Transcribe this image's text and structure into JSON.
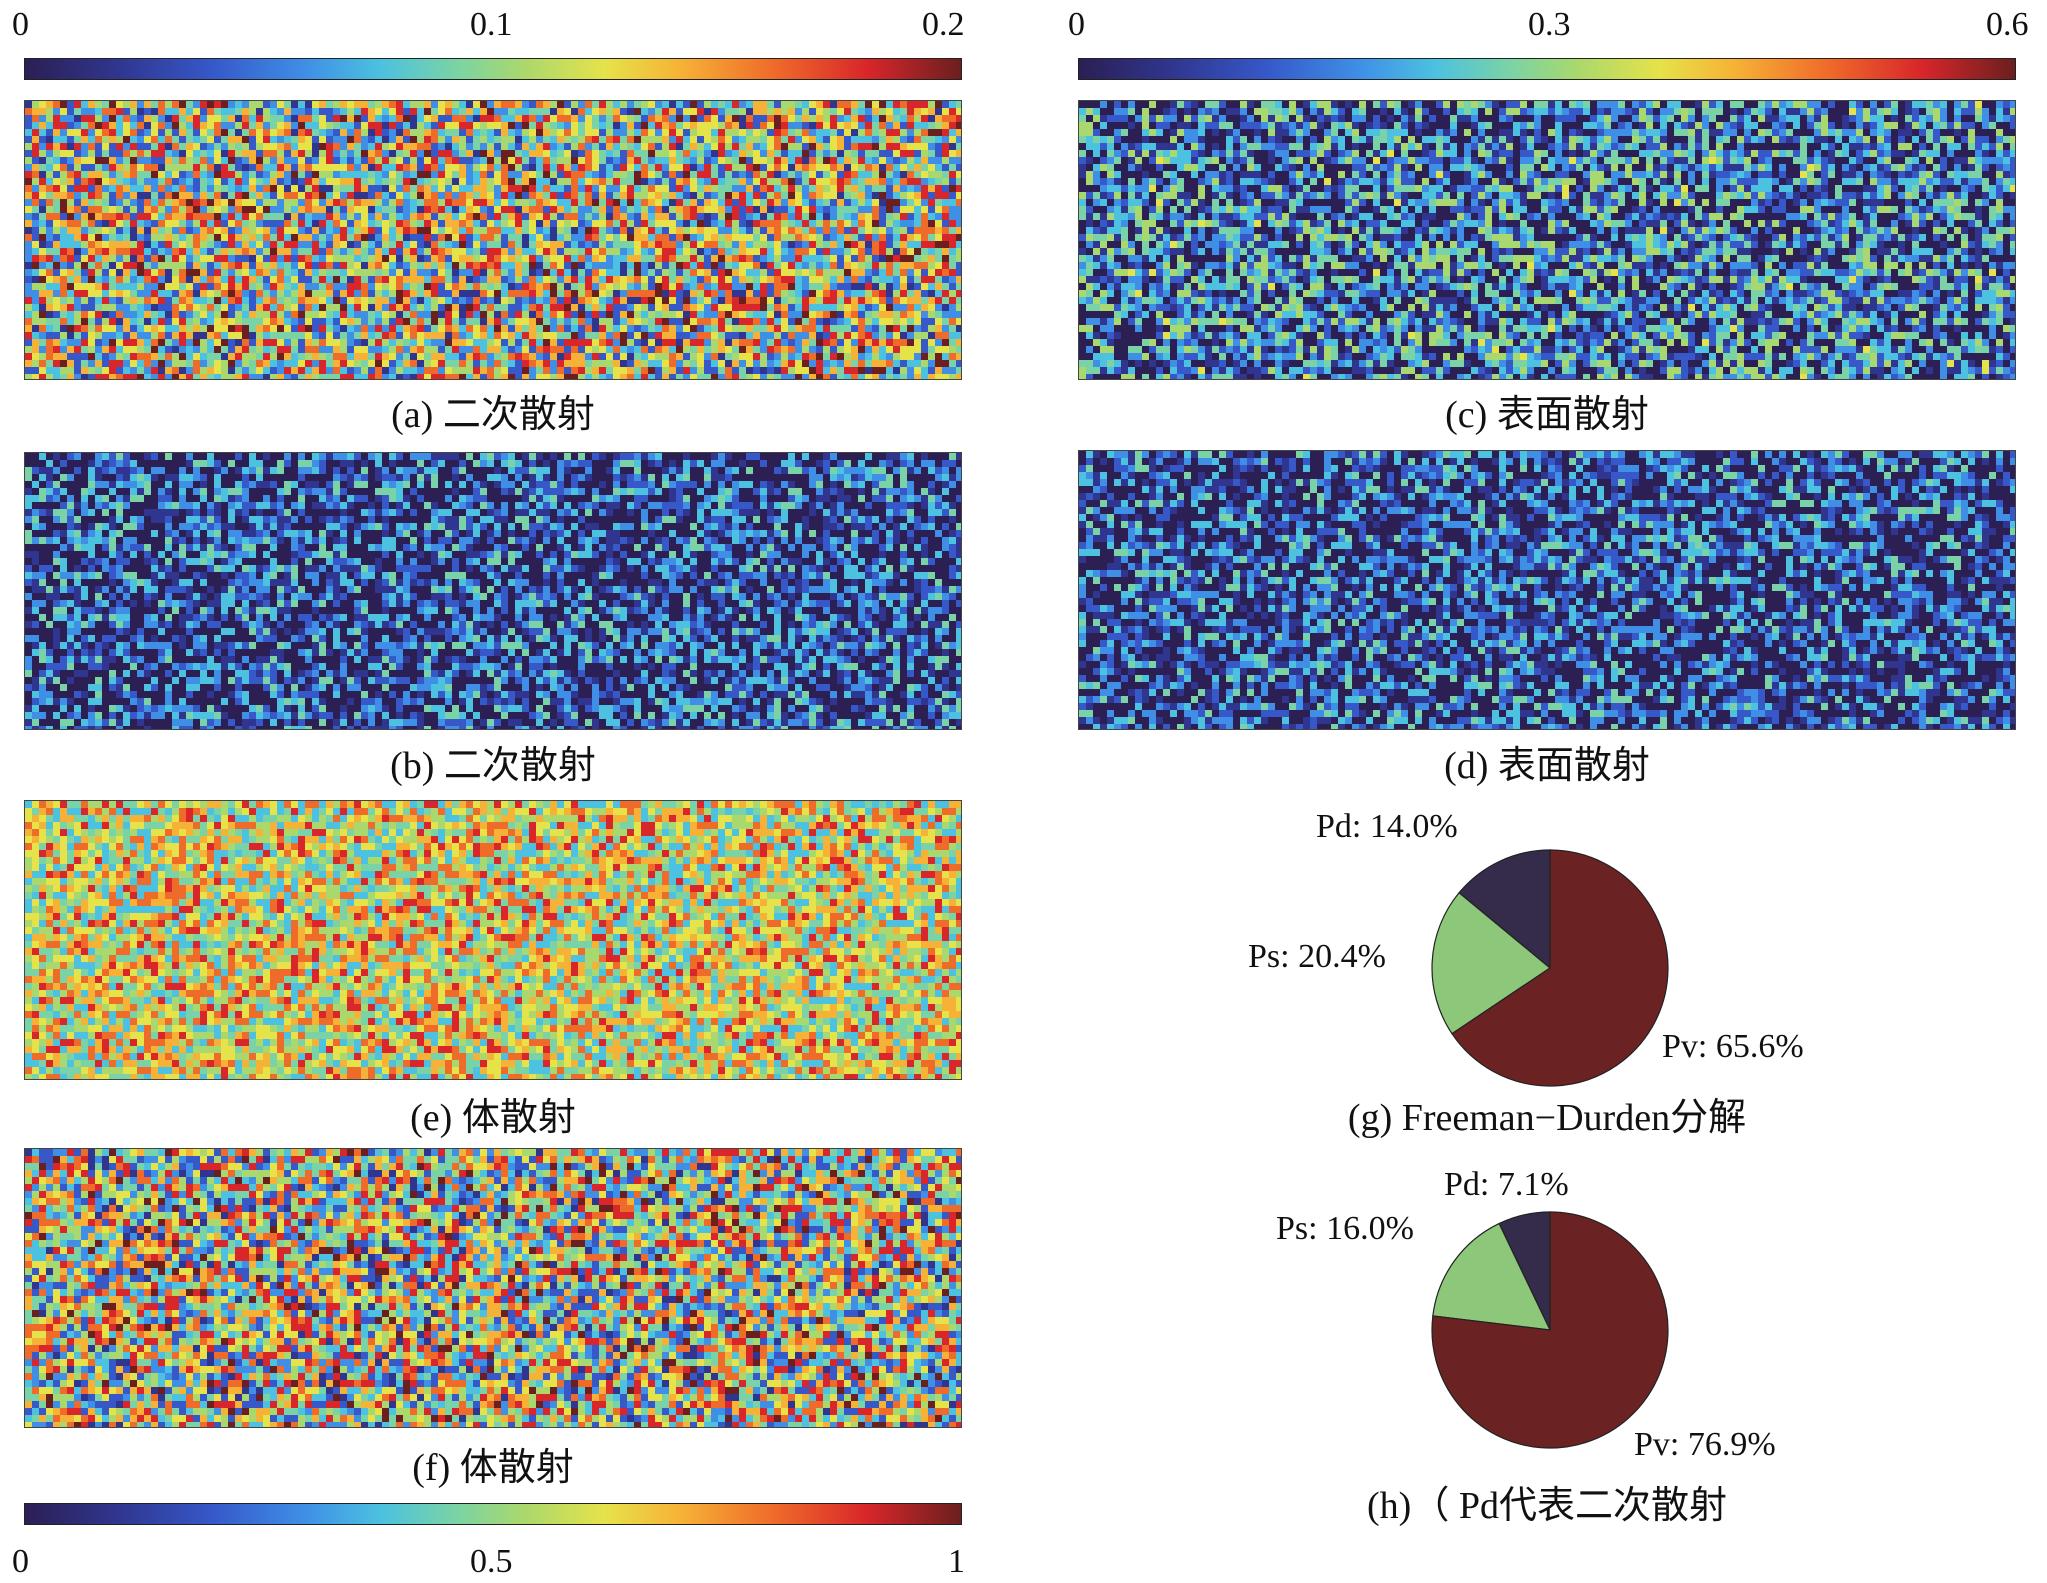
{
  "colorbars": {
    "top_left": {
      "ticks": [
        "0",
        "0.1",
        "0.2"
      ]
    },
    "top_right": {
      "ticks": [
        "0",
        "0.3",
        "0.6"
      ]
    },
    "bottom": {
      "ticks": [
        "0",
        "0.5",
        "1"
      ]
    }
  },
  "captions": {
    "a": "(a) 二次散射",
    "b": "(b) 二次散射",
    "c": "(c) 表面散射",
    "d": "(d) 表面散射",
    "e": "(e) 体散射",
    "f": "(f) 体散射",
    "g": "(g) Freeman−Durden分解",
    "h": "(h)（ Pd代表二次散射"
  },
  "colors": {
    "pd": "#352b4a",
    "ps": "#8cc77a",
    "pv": "#6b2223"
  },
  "chart_data": [
    {
      "type": "heatmap",
      "panel": "a",
      "title": "(a) 二次散射",
      "range": [
        0,
        0.2
      ],
      "dominant": "high"
    },
    {
      "type": "heatmap",
      "panel": "b",
      "title": "(b) 二次散射",
      "range": [
        0,
        1
      ],
      "dominant": "low"
    },
    {
      "type": "heatmap",
      "panel": "c",
      "title": "(c) 表面散射",
      "range": [
        0,
        0.6
      ],
      "dominant": "low-mid"
    },
    {
      "type": "heatmap",
      "panel": "d",
      "title": "(d) 表面散射",
      "range": [
        0,
        1
      ],
      "dominant": "low"
    },
    {
      "type": "heatmap",
      "panel": "e",
      "title": "(e) 体散射",
      "range": [
        0,
        1
      ],
      "dominant": "mid-high"
    },
    {
      "type": "heatmap",
      "panel": "f",
      "title": "(f) 体散射",
      "range": [
        0,
        1
      ],
      "dominant": "high"
    },
    {
      "type": "pie",
      "panel": "g",
      "title": "(g) Freeman−Durden分解",
      "labels": [
        "Pd",
        "Ps",
        "Pv"
      ],
      "values": [
        14.0,
        20.4,
        65.6
      ],
      "label_text": [
        "Pd: 14.0%",
        "Ps: 20.4%",
        "Pv: 65.6%"
      ]
    },
    {
      "type": "pie",
      "panel": "h",
      "title": "(h)（ Pd代表二次散射",
      "labels": [
        "Pd",
        "Ps",
        "Pv"
      ],
      "values": [
        7.1,
        16.0,
        76.9
      ],
      "label_text": [
        "Pd: 7.1%",
        "Ps: 16.0%",
        "Pv: 76.9%"
      ]
    }
  ]
}
